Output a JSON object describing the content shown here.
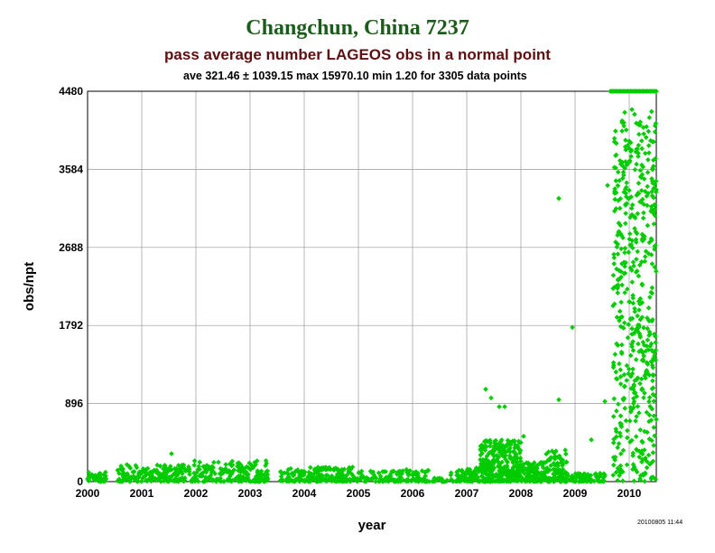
{
  "chart_data": {
    "type": "scatter",
    "title": "Changchun, China 7237",
    "subtitle": "pass average number LAGEOS obs in a normal point",
    "stats_line": "ave 321.46 ± 1039.15 max 15970.10 min 1.20 for 3305 data points",
    "xlabel": "year",
    "ylabel": "obs/npt",
    "xlim": [
      2000,
      2010.5
    ],
    "ylim": [
      0,
      4480
    ],
    "x_ticks": [
      "2000",
      "2001",
      "2002",
      "2003",
      "2004",
      "2005",
      "2006",
      "2007",
      "2008",
      "2009",
      "2010"
    ],
    "y_ticks": [
      "0",
      "896",
      "1792",
      "2688",
      "3584",
      "4480"
    ],
    "grid": true,
    "colors": {
      "title": "#1a5c1a",
      "subtitle": "#5c1010",
      "points": "#00cc00",
      "grid": "#999999"
    },
    "density_segments": [
      {
        "x": [
          2000.0,
          2000.35
        ],
        "ymax": 110,
        "count": 40
      },
      {
        "x": [
          2000.55,
          2001.95
        ],
        "ymax": 200,
        "count": 180
      },
      {
        "x": [
          2001.95,
          2003.35
        ],
        "ymax": 240,
        "count": 200
      },
      {
        "x": [
          2003.55,
          2004.9
        ],
        "ymax": 170,
        "count": 180
      },
      {
        "x": [
          2004.9,
          2006.3
        ],
        "ymax": 140,
        "count": 140
      },
      {
        "x": [
          2006.3,
          2006.65
        ],
        "ymax": 40,
        "count": 20
      },
      {
        "x": [
          2006.7,
          2007.25
        ],
        "ymax": 160,
        "count": 70
      },
      {
        "x": [
          2007.25,
          2008.0
        ],
        "ymax": 480,
        "count": 320
      },
      {
        "x": [
          2008.0,
          2008.45
        ],
        "ymax": 220,
        "count": 110
      },
      {
        "x": [
          2008.45,
          2008.85
        ],
        "ymax": 380,
        "count": 110
      },
      {
        "x": [
          2008.85,
          2009.55
        ],
        "ymax": 100,
        "count": 90
      },
      {
        "x": [
          2009.7,
          2010.5
        ],
        "ymax": 4480,
        "count": 520
      }
    ],
    "notable_points": [
      {
        "x": 2000.05,
        "y": 50
      },
      {
        "x": 2001.55,
        "y": 320
      },
      {
        "x": 2007.35,
        "y": 1060
      },
      {
        "x": 2007.45,
        "y": 960
      },
      {
        "x": 2007.6,
        "y": 860
      },
      {
        "x": 2007.7,
        "y": 860
      },
      {
        "x": 2008.05,
        "y": 520
      },
      {
        "x": 2008.7,
        "y": 940
      },
      {
        "x": 2008.7,
        "y": 3250
      },
      {
        "x": 2008.95,
        "y": 1770
      },
      {
        "x": 2009.3,
        "y": 480
      },
      {
        "x": 2009.55,
        "y": 920
      },
      {
        "x": 2009.6,
        "y": 3400
      },
      {
        "x": 2009.75,
        "y": 3600
      },
      {
        "x": 2009.9,
        "y": 4120
      },
      {
        "x": 2010.05,
        "y": 4270
      },
      {
        "x": 2010.45,
        "y": 3900
      },
      {
        "x": 2010.5,
        "y": 3350
      }
    ],
    "capped_points_at_ylim": {
      "x": [
        2009.65,
        2010.5
      ],
      "y": 4480,
      "count": 40
    }
  },
  "timestamp": "20100805 11:44"
}
